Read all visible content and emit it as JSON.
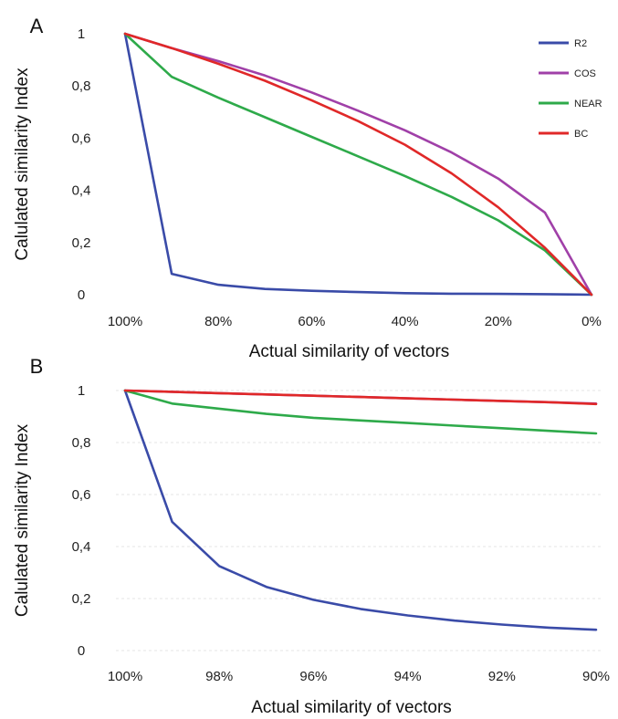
{
  "chart_data": [
    {
      "panel_label": "A",
      "type": "line",
      "xlabel": "Actual similarity of vectors",
      "ylabel": "Calulated similarity Index",
      "x": [
        100,
        90,
        80,
        70,
        60,
        50,
        40,
        30,
        20,
        10,
        0
      ],
      "x_tick_labels": [
        "100%",
        "80%",
        "60%",
        "40%",
        "20%",
        "0%"
      ],
      "x_tick_values": [
        100,
        80,
        60,
        40,
        20,
        0
      ],
      "xlim": [
        100,
        0
      ],
      "y_tick_labels": [
        "0",
        "0,2",
        "0,4",
        "0,6",
        "0,8",
        "1"
      ],
      "y_tick_values": [
        0,
        0.2,
        0.4,
        0.6,
        0.8,
        1
      ],
      "ylim": [
        0,
        1
      ],
      "legend_position": "top-right",
      "series": [
        {
          "name": "R2",
          "color": "#3a4ba8",
          "values": [
            1,
            0.08,
            0.038,
            0.022,
            0.015,
            0.01,
            0.006,
            0.004,
            0.003,
            0.002,
            0
          ]
        },
        {
          "name": "COS",
          "color": "#a040a8",
          "values": [
            1,
            0.945,
            0.895,
            0.84,
            0.775,
            0.705,
            0.63,
            0.545,
            0.445,
            0.315,
            0
          ]
        },
        {
          "name": "NEAR",
          "color": "#2eaa4a",
          "values": [
            1,
            0.835,
            0.755,
            0.68,
            0.605,
            0.53,
            0.455,
            0.375,
            0.285,
            0.17,
            0
          ]
        },
        {
          "name": "BC",
          "color": "#e02828",
          "values": [
            1,
            0.945,
            0.885,
            0.82,
            0.745,
            0.665,
            0.575,
            0.465,
            0.335,
            0.18,
            0
          ]
        }
      ]
    },
    {
      "panel_label": "B",
      "type": "line",
      "xlabel": "Actual similarity of vectors",
      "ylabel": "Calulated similarity Index",
      "x": [
        100,
        99,
        98,
        97,
        96,
        95,
        94,
        93,
        92,
        91,
        90
      ],
      "x_tick_labels": [
        "100%",
        "98%",
        "96%",
        "94%",
        "92%",
        "90%"
      ],
      "x_tick_values": [
        100,
        98,
        96,
        94,
        92,
        90
      ],
      "xlim": [
        100,
        90
      ],
      "y_tick_labels": [
        "0",
        "0,2",
        "0,4",
        "0,6",
        "0,8",
        "1"
      ],
      "y_tick_values": [
        0,
        0.2,
        0.4,
        0.6,
        0.8,
        1
      ],
      "ylim": [
        0,
        1
      ],
      "series": [
        {
          "name": "R2",
          "color": "#3a4ba8",
          "values": [
            1,
            0.495,
            0.325,
            0.245,
            0.195,
            0.16,
            0.135,
            0.115,
            0.1,
            0.088,
            0.08
          ]
        },
        {
          "name": "COS",
          "color": "#a040a8",
          "values": [
            1,
            0.995,
            0.99,
            0.985,
            0.98,
            0.975,
            0.97,
            0.965,
            0.96,
            0.955,
            0.95
          ]
        },
        {
          "name": "NEAR",
          "color": "#2eaa4a",
          "values": [
            1,
            0.95,
            0.93,
            0.91,
            0.895,
            0.885,
            0.875,
            0.865,
            0.855,
            0.845,
            0.835
          ]
        },
        {
          "name": "BC",
          "color": "#e02828",
          "values": [
            1,
            0.995,
            0.99,
            0.985,
            0.98,
            0.975,
            0.97,
            0.965,
            0.96,
            0.955,
            0.948
          ]
        }
      ]
    }
  ]
}
